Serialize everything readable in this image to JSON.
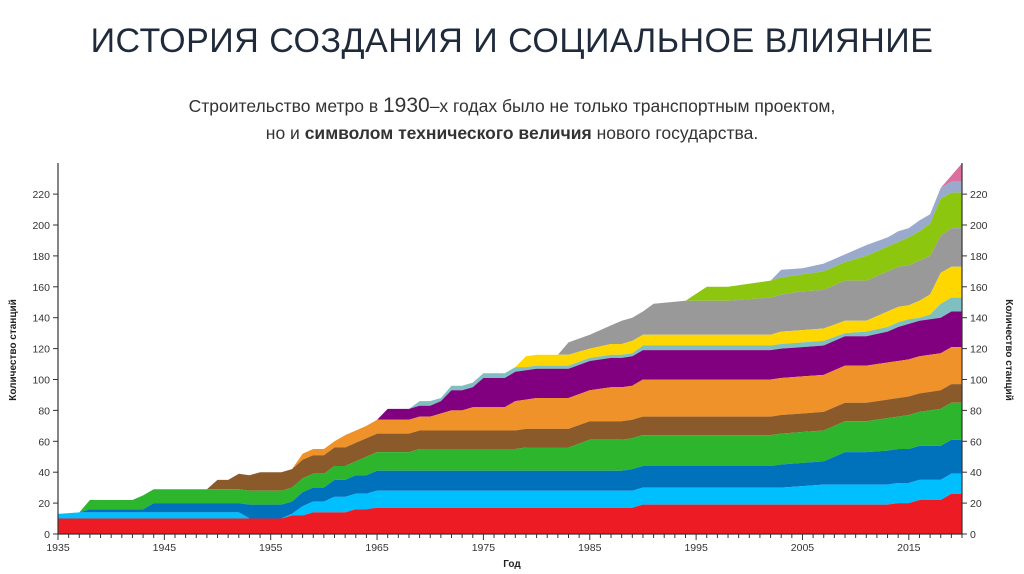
{
  "title": "ИСТОРИЯ СОЗДАНИЯ И СОЦИАЛЬНОЕ ВЛИЯНИЕ",
  "subtitle": {
    "p1": "Строительство метро в ",
    "year": "1930",
    "p2": "–х годах было не только транспортным проектом,",
    "p3": "но и ",
    "bold": "символом технического величия",
    "p4": " нового государства."
  },
  "chart_data": {
    "type": "area",
    "stacked": true,
    "xlabel": "Год",
    "ylabel": "Количество станций",
    "xlim": [
      1935,
      2020
    ],
    "ylim": [
      0,
      240
    ],
    "x_ticks": [
      "1935",
      "1945",
      "1955",
      "1965",
      "1975",
      "1985",
      "1995",
      "2005",
      "2015"
    ],
    "y_ticks": [
      "0",
      "20",
      "40",
      "60",
      "80",
      "100",
      "120",
      "140",
      "160",
      "180",
      "200",
      "220"
    ],
    "series_colors": [
      "#ed1c24",
      "#00bfff",
      "#0072bc",
      "#2db52d",
      "#8b5a2b",
      "#f0922a",
      "#800080",
      "#7fbfbf",
      "#ffd700",
      "#999999",
      "#8cc60e",
      "#99aacc",
      "#db6fa0"
    ],
    "note": "rows: [year, cumulative stacked top of each series bottom-to-top; null = series not yet present]",
    "rows": [
      [
        1935,
        10,
        13,
        null,
        null,
        null,
        null,
        null,
        null,
        null,
        null,
        null,
        null,
        null
      ],
      [
        1937,
        10,
        14,
        14,
        14,
        null,
        null,
        null,
        null,
        null,
        null,
        null,
        null,
        null
      ],
      [
        1938,
        10,
        14,
        16,
        22,
        null,
        null,
        null,
        null,
        null,
        null,
        null,
        null,
        null
      ],
      [
        1942,
        10,
        14,
        16,
        22,
        null,
        null,
        null,
        null,
        null,
        null,
        null,
        null,
        null
      ],
      [
        1943,
        10,
        14,
        16,
        25,
        null,
        null,
        null,
        null,
        null,
        null,
        null,
        null,
        null
      ],
      [
        1944,
        10,
        14,
        20,
        29,
        null,
        null,
        null,
        null,
        null,
        null,
        null,
        null,
        null
      ],
      [
        1949,
        10,
        14,
        20,
        29,
        29,
        null,
        null,
        null,
        null,
        null,
        null,
        null,
        null
      ],
      [
        1950,
        10,
        14,
        20,
        29,
        35,
        null,
        null,
        null,
        null,
        null,
        null,
        null,
        null
      ],
      [
        1951,
        10,
        14,
        20,
        29,
        35,
        null,
        null,
        null,
        null,
        null,
        null,
        null,
        null
      ],
      [
        1952,
        10,
        14,
        20,
        29,
        39,
        null,
        null,
        null,
        null,
        null,
        null,
        null,
        null
      ],
      [
        1953,
        10,
        10,
        19,
        28,
        38,
        null,
        null,
        null,
        null,
        null,
        null,
        null,
        null
      ],
      [
        1954,
        10,
        10,
        19,
        28,
        40,
        null,
        null,
        null,
        null,
        null,
        null,
        null,
        null
      ],
      [
        1956,
        10,
        10,
        19,
        28,
        40,
        null,
        null,
        null,
        null,
        null,
        null,
        null,
        null
      ],
      [
        1957,
        12,
        13,
        21,
        30,
        42,
        42,
        null,
        null,
        null,
        null,
        null,
        null,
        null
      ],
      [
        1958,
        12,
        18,
        27,
        36,
        48,
        52,
        null,
        null,
        null,
        null,
        null,
        null,
        null
      ],
      [
        1959,
        14,
        21,
        30,
        39,
        51,
        55,
        null,
        null,
        null,
        null,
        null,
        null,
        null
      ],
      [
        1960,
        14,
        21,
        30,
        39,
        51,
        55,
        null,
        null,
        null,
        null,
        null,
        null,
        null
      ],
      [
        1961,
        14,
        24,
        35,
        44,
        56,
        60,
        null,
        null,
        null,
        null,
        null,
        null,
        null
      ],
      [
        1962,
        14,
        24,
        35,
        44,
        56,
        64,
        null,
        null,
        null,
        null,
        null,
        null,
        null
      ],
      [
        1963,
        16,
        26,
        38,
        47,
        59,
        67,
        null,
        null,
        null,
        null,
        null,
        null,
        null
      ],
      [
        1964,
        16,
        26,
        38,
        50,
        62,
        70,
        null,
        null,
        null,
        null,
        null,
        null,
        null
      ],
      [
        1965,
        17,
        28,
        41,
        53,
        65,
        74,
        74,
        null,
        null,
        null,
        null,
        null,
        null
      ],
      [
        1966,
        17,
        28,
        41,
        53,
        65,
        74,
        81,
        null,
        null,
        null,
        null,
        null,
        null
      ],
      [
        1968,
        17,
        28,
        41,
        53,
        65,
        74,
        81,
        81,
        null,
        null,
        null,
        null,
        null
      ],
      [
        1969,
        17,
        28,
        41,
        55,
        67,
        76,
        83,
        86,
        null,
        null,
        null,
        null,
        null
      ],
      [
        1970,
        17,
        28,
        41,
        55,
        67,
        76,
        83,
        86,
        null,
        null,
        null,
        null,
        null
      ],
      [
        1971,
        17,
        28,
        41,
        55,
        67,
        78,
        86,
        88,
        null,
        null,
        null,
        null,
        null
      ],
      [
        1972,
        17,
        28,
        41,
        55,
        67,
        80,
        93,
        96,
        null,
        null,
        null,
        null,
        null
      ],
      [
        1973,
        17,
        28,
        41,
        55,
        67,
        80,
        93,
        96,
        null,
        null,
        null,
        null,
        null
      ],
      [
        1974,
        17,
        28,
        41,
        55,
        67,
        82,
        95,
        98,
        null,
        null,
        null,
        null,
        null
      ],
      [
        1975,
        17,
        28,
        41,
        55,
        67,
        82,
        101,
        104,
        null,
        null,
        null,
        null,
        null
      ],
      [
        1977,
        17,
        28,
        41,
        55,
        67,
        82,
        101,
        104,
        null,
        null,
        null,
        null,
        null
      ],
      [
        1978,
        17,
        28,
        41,
        55,
        67,
        86,
        105,
        108,
        108,
        null,
        null,
        null,
        null
      ],
      [
        1979,
        17,
        28,
        41,
        56,
        68,
        87,
        106,
        108,
        115,
        null,
        null,
        null,
        null
      ],
      [
        1980,
        17,
        28,
        41,
        56,
        68,
        88,
        107,
        109,
        116,
        null,
        null,
        null,
        null
      ],
      [
        1982,
        17,
        28,
        41,
        56,
        68,
        88,
        107,
        109,
        116,
        116,
        null,
        null,
        null
      ],
      [
        1983,
        17,
        28,
        41,
        56,
        68,
        88,
        107,
        109,
        116,
        124,
        null,
        null,
        null
      ],
      [
        1985,
        17,
        28,
        41,
        61,
        73,
        93,
        112,
        114,
        120,
        129,
        null,
        null,
        null
      ],
      [
        1987,
        17,
        28,
        41,
        61,
        73,
        95,
        114,
        116,
        123,
        135,
        null,
        null,
        null
      ],
      [
        1988,
        17,
        28,
        41,
        61,
        73,
        95,
        114,
        116,
        123,
        138,
        null,
        null,
        null
      ],
      [
        1989,
        17,
        28,
        42,
        62,
        74,
        96,
        115,
        117,
        125,
        140,
        null,
        null,
        null
      ],
      [
        1990,
        19,
        30,
        44,
        64,
        76,
        100,
        119,
        122,
        129,
        144,
        null,
        null,
        null
      ],
      [
        1991,
        19,
        30,
        44,
        64,
        76,
        100,
        119,
        122,
        129,
        149,
        null,
        null,
        null
      ],
      [
        1994,
        19,
        30,
        44,
        64,
        76,
        100,
        119,
        122,
        129,
        151,
        151,
        null,
        null
      ],
      [
        1996,
        19,
        30,
        44,
        64,
        76,
        100,
        119,
        122,
        129,
        151,
        160,
        null,
        null
      ],
      [
        1998,
        19,
        30,
        44,
        64,
        76,
        100,
        119,
        122,
        129,
        151,
        160,
        null,
        null
      ],
      [
        2002,
        19,
        30,
        44,
        64,
        76,
        100,
        119,
        122,
        129,
        153,
        164,
        164,
        null
      ],
      [
        2003,
        19,
        30,
        45,
        65,
        77,
        101,
        120,
        123,
        131,
        155,
        166,
        171,
        null
      ],
      [
        2005,
        19,
        31,
        46,
        66,
        78,
        102,
        121,
        124,
        132,
        157,
        168,
        172,
        null
      ],
      [
        2007,
        19,
        32,
        47,
        67,
        79,
        103,
        122,
        125,
        133,
        158,
        170,
        175,
        null
      ],
      [
        2009,
        19,
        32,
        53,
        73,
        85,
        109,
        128,
        130,
        138,
        164,
        176,
        181,
        null
      ],
      [
        2011,
        19,
        32,
        53,
        73,
        85,
        109,
        128,
        131,
        138,
        164,
        180,
        187,
        null
      ],
      [
        2013,
        19,
        32,
        54,
        75,
        87,
        111,
        131,
        134,
        144,
        170,
        186,
        192,
        null
      ],
      [
        2014,
        20,
        33,
        55,
        76,
        88,
        112,
        134,
        137,
        147,
        173,
        189,
        196,
        null
      ],
      [
        2015,
        20,
        33,
        55,
        77,
        89,
        113,
        136,
        139,
        148,
        174,
        192,
        198,
        null
      ],
      [
        2016,
        22,
        35,
        57,
        79,
        91,
        115,
        138,
        140,
        151,
        177,
        196,
        203,
        null
      ],
      [
        2017,
        22,
        35,
        57,
        80,
        92,
        116,
        139,
        142,
        155,
        180,
        201,
        207,
        null
      ],
      [
        2018,
        22,
        35,
        57,
        81,
        93,
        117,
        140,
        149,
        169,
        193,
        217,
        224,
        224
      ],
      [
        2019,
        26,
        39,
        61,
        85,
        97,
        121,
        144,
        153,
        173,
        198,
        221,
        228,
        232
      ],
      [
        2020,
        26,
        39,
        61,
        85,
        97,
        121,
        144,
        153,
        173,
        198,
        221,
        228,
        240
      ]
    ]
  }
}
